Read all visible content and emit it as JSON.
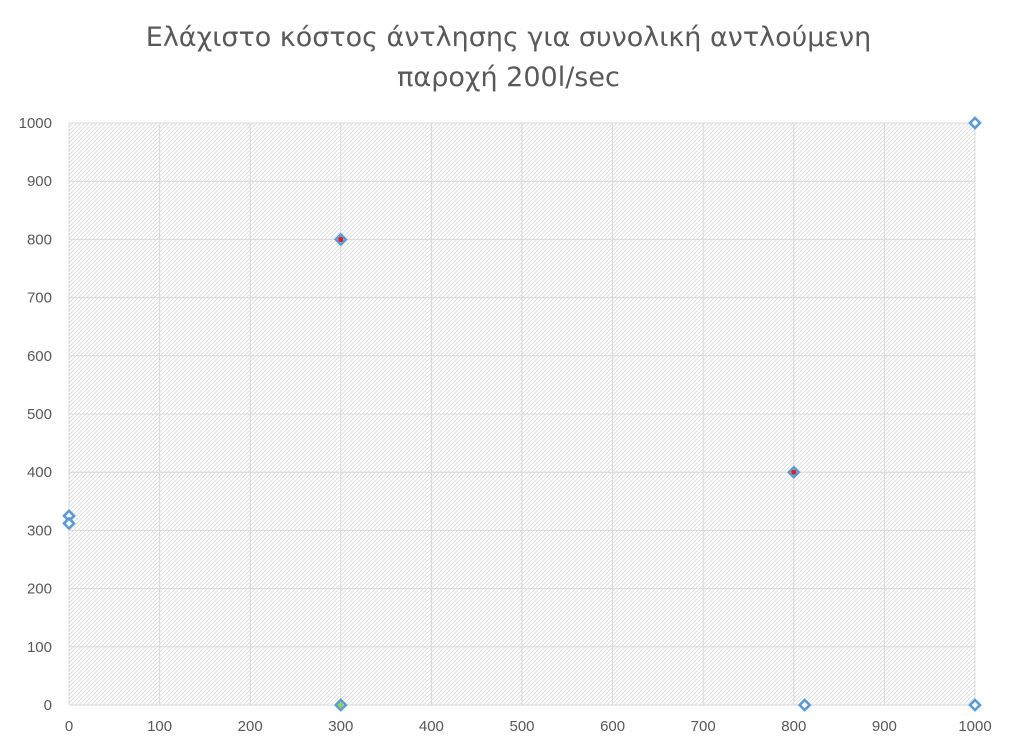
{
  "chart_data": {
    "type": "scatter",
    "title_lines": [
      "Ελάχιστο κόστος άντλησης για συνολική αντλούμενη",
      "παροχή 200l/sec"
    ],
    "xlim": [
      0,
      1000
    ],
    "ylim": [
      0,
      1000
    ],
    "x_ticks": [
      0,
      100,
      200,
      300,
      400,
      500,
      600,
      700,
      800,
      900,
      1000
    ],
    "y_ticks": [
      0,
      100,
      200,
      300,
      400,
      500,
      600,
      700,
      800,
      900,
      1000
    ],
    "grid": true,
    "legend": "none",
    "series": [
      {
        "marker": "diamond-open",
        "color": "#5b9bd5",
        "points": [
          {
            "x": 0,
            "y": 325
          },
          {
            "x": 0,
            "y": 312
          },
          {
            "x": 300,
            "y": 800
          },
          {
            "x": 300,
            "y": 0
          },
          {
            "x": 800,
            "y": 400
          },
          {
            "x": 812,
            "y": 0
          },
          {
            "x": 1000,
            "y": 1000
          },
          {
            "x": 1000,
            "y": 0
          }
        ]
      },
      {
        "marker": "dot",
        "color": "#e02020",
        "points": [
          {
            "x": 300,
            "y": 800
          },
          {
            "x": 800,
            "y": 400
          }
        ]
      },
      {
        "marker": "dot",
        "color": "#92d050",
        "points": [
          {
            "x": 300,
            "y": 0
          }
        ]
      }
    ]
  }
}
